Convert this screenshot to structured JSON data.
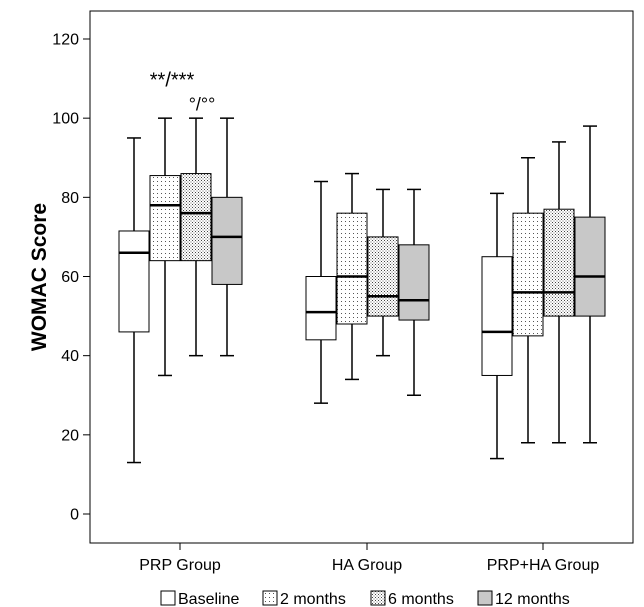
{
  "chart_data": {
    "type": "box",
    "ylabel": "WOMAC Score",
    "xlabel": "",
    "ylim": [
      0,
      120
    ],
    "yticks": [
      0,
      20,
      40,
      60,
      80,
      100,
      120
    ],
    "categories": [
      "PRP Group",
      "HA Group",
      "PRP+HA Group"
    ],
    "series": [
      {
        "name": "Baseline",
        "fill": "none",
        "boxes": [
          {
            "min": 13,
            "q1": 46,
            "median": 66,
            "q3": 71.5,
            "max": 95
          },
          {
            "min": 28,
            "q1": 44,
            "median": 51,
            "q3": 60,
            "max": 84
          },
          {
            "min": 14,
            "q1": 35,
            "median": 46,
            "q3": 65,
            "max": 81
          }
        ]
      },
      {
        "name": "2 months",
        "fill": "sparse-dots",
        "boxes": [
          {
            "min": 35,
            "q1": 64,
            "median": 78,
            "q3": 85.5,
            "max": 100
          },
          {
            "min": 34,
            "q1": 48,
            "median": 60,
            "q3": 76,
            "max": 86
          },
          {
            "min": 18,
            "q1": 45,
            "median": 56,
            "q3": 76,
            "max": 90
          }
        ]
      },
      {
        "name": "6 months",
        "fill": "dense-dots",
        "boxes": [
          {
            "min": 40,
            "q1": 64,
            "median": 76,
            "q3": 86,
            "max": 100
          },
          {
            "min": 40,
            "q1": 50,
            "median": 55,
            "q3": 70,
            "max": 82
          },
          {
            "min": 18,
            "q1": 50,
            "median": 56,
            "q3": 77,
            "max": 94
          }
        ]
      },
      {
        "name": "12 months",
        "fill": "#c8c8c8",
        "boxes": [
          {
            "min": 40,
            "q1": 58,
            "median": 70,
            "q3": 80,
            "max": 100
          },
          {
            "min": 30,
            "q1": 49,
            "median": 54,
            "q3": 68,
            "max": 82
          },
          {
            "min": 18,
            "q1": 50,
            "median": 60,
            "q3": 75,
            "max": 98
          }
        ]
      }
    ],
    "annotations": [
      {
        "text": "**/***",
        "category": "PRP Group",
        "y": 110
      },
      {
        "text": "°/°°",
        "category": "PRP Group",
        "y": 104
      }
    ],
    "grid": false,
    "legend_position": "bottom"
  }
}
